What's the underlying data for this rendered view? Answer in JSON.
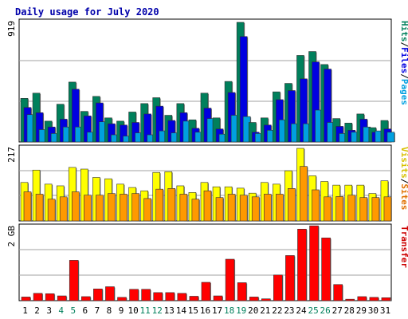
{
  "chart_data": {
    "type": "bar",
    "title": "Daily usage for July 2020",
    "categories": [
      "1",
      "2",
      "3",
      "4",
      "5",
      "6",
      "7",
      "8",
      "9",
      "10",
      "11",
      "12",
      "13",
      "14",
      "15",
      "16",
      "17",
      "18",
      "19",
      "20",
      "21",
      "22",
      "23",
      "24",
      "25",
      "26",
      "27",
      "28",
      "29",
      "30",
      "31"
    ],
    "weekend_days": [
      "4",
      "5",
      "11",
      "12",
      "18",
      "19",
      "25",
      "26"
    ],
    "panels": [
      {
        "name": "hits-files-pages",
        "ymax_label": "919",
        "ymax": 919,
        "right_labels": [
          {
            "text": "Hits",
            "color": "#00805c"
          },
          {
            "text": "/",
            "color": "#000000"
          },
          {
            "text": "Files",
            "color": "#0000e0"
          },
          {
            "text": "/",
            "color": "#000000"
          },
          {
            "text": "Pages",
            "color": "#00a0e0"
          }
        ],
        "series": [
          {
            "name": "Hits",
            "color": "#00805c",
            "values": [
              335,
              375,
              160,
              290,
              460,
              235,
              350,
              185,
              160,
              230,
              295,
              340,
              205,
              295,
              170,
              375,
              185,
              465,
              919,
              150,
              185,
              385,
              450,
              665,
              695,
              595,
              180,
              145,
              215,
              110,
              165
            ]
          },
          {
            "name": "Files",
            "color": "#0000e0",
            "values": [
              265,
              225,
              115,
              175,
              405,
              200,
              300,
              140,
              130,
              150,
              215,
              275,
              165,
              225,
              105,
              260,
              100,
              380,
              810,
              75,
              130,
              325,
              395,
              485,
              615,
              560,
              120,
              90,
              175,
              75,
              100
            ]
          },
          {
            "name": "Pages",
            "color": "#00a0e0",
            "values": [
              210,
              95,
              65,
              115,
              115,
              75,
              155,
              55,
              45,
              70,
              55,
              85,
              70,
              160,
              75,
              180,
              60,
              205,
              195,
              65,
              90,
              170,
              140,
              140,
              245,
              150,
              65,
              75,
              115,
              85,
              75
            ]
          }
        ]
      },
      {
        "name": "visits-sites",
        "ymax_label": "217",
        "ymax": 217,
        "right_labels": [
          {
            "text": "Visits",
            "color": "#d8c000"
          },
          {
            "text": "/",
            "color": "#000000"
          },
          {
            "text": "Sites",
            "color": "#e07000"
          }
        ],
        "series": [
          {
            "name": "Visits",
            "color": "#ffff00",
            "values": [
              115,
              152,
              110,
              105,
              160,
              155,
              130,
              126,
              110,
              100,
              90,
              145,
              147,
              105,
              85,
              115,
              102,
              102,
              98,
              83,
              115,
              110,
              150,
              217,
              135,
              118,
              107,
              107,
              107,
              82,
              120
            ]
          },
          {
            "name": "Sites",
            "color": "#ff9900",
            "values": [
              87,
              80,
              65,
              72,
              87,
              77,
              77,
              82,
              80,
              82,
              67,
              95,
              97,
              80,
              65,
              90,
              70,
              80,
              77,
              72,
              80,
              80,
              97,
              163,
              93,
              72,
              73,
              77,
              70,
              70,
              72
            ]
          }
        ]
      },
      {
        "name": "transfer",
        "ymax_label": "2 GB",
        "ymax": 2.0,
        "unit": "GB",
        "right_labels": [
          {
            "text": "Transfer",
            "color": "#cc0000"
          }
        ],
        "series": [
          {
            "name": "Transfer",
            "color": "#ff0000",
            "values": [
              0.1,
              0.2,
              0.19,
              0.13,
              1.1,
              0.11,
              0.32,
              0.38,
              0.09,
              0.31,
              0.31,
              0.22,
              0.22,
              0.2,
              0.12,
              0.5,
              0.13,
              1.13,
              0.49,
              0.1,
              0.05,
              0.7,
              1.23,
              1.95,
              2.04,
              1.71,
              0.44,
              0.04,
              0.11,
              0.09,
              0.08
            ]
          }
        ]
      }
    ]
  }
}
